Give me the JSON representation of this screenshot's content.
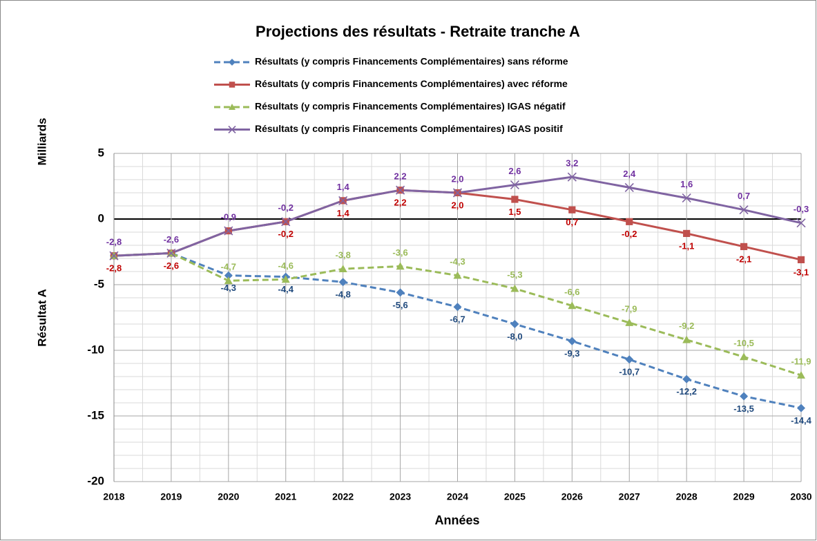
{
  "chart_data": {
    "type": "line",
    "title": "Projections des résultats - Retraite tranche A",
    "ylabel_top": "Milliards",
    "ylabel": "Résultat A",
    "xlabel": "Années",
    "categories": [
      "2018",
      "2019",
      "2020",
      "2021",
      "2022",
      "2023",
      "2024",
      "2025",
      "2026",
      "2027",
      "2028",
      "2029",
      "2030"
    ],
    "ylim": [
      -20,
      5
    ],
    "yticks": [
      -20,
      -15,
      -10,
      -5,
      0,
      5
    ],
    "grid": true,
    "legend": "top",
    "series": [
      {
        "name": "Résultats (y compris Financements Complémentaires) sans réforme",
        "color": "#4f81bd",
        "label_color": "#1f497d",
        "marker": "diamond",
        "dash": true,
        "label_side": "below",
        "values": [
          -2.8,
          -2.6,
          -4.3,
          -4.4,
          -4.8,
          -5.6,
          -6.7,
          -8,
          -9.3,
          -10.7,
          -12.2,
          -13.5,
          -14.4
        ],
        "value_labels": [
          null,
          null,
          "-4,3",
          "-4,4",
          "-4,8",
          "-5,6",
          "-6,7",
          "-8,0",
          "-9,3",
          "-10,7",
          "-12,2",
          "-13,5",
          "-14,4"
        ]
      },
      {
        "name": "Résultats (y compris Financements Complémentaires) avec réforme",
        "color": "#c0504d",
        "label_color": "#c00000",
        "marker": "square",
        "dash": false,
        "label_side": "below",
        "values": [
          -2.8,
          -2.6,
          -0.9,
          -0.2,
          1.4,
          2.2,
          2,
          1.5,
          0.7,
          -0.2,
          -1.1,
          -2.1,
          -3.1
        ],
        "value_labels": [
          "-2,8",
          "-2,6",
          null,
          "-0,2",
          "1,4",
          "2,2",
          "2,0",
          "1,5",
          "0,7",
          "-0,2",
          "-1,1",
          "-2,1",
          "-3,1"
        ]
      },
      {
        "name": "Résultats (y compris Financements Complémentaires) IGAS négatif",
        "color": "#9bbb59",
        "label_color": "#9bbb59",
        "marker": "triangle",
        "dash": true,
        "label_side": "above",
        "values": [
          -2.8,
          -2.6,
          -4.7,
          -4.6,
          -3.8,
          -3.6,
          -4.3,
          -5.3,
          -6.6,
          -7.9,
          -9.2,
          -10.5,
          -11.9
        ],
        "value_labels": [
          null,
          null,
          "-4,7",
          "-4,6",
          "-3,8",
          "-3,6",
          "-4,3",
          "-5,3",
          "-6,6",
          "-7,9",
          "-9,2",
          "-10,5",
          "-11,9"
        ]
      },
      {
        "name": "Résultats (y compris Financements Complémentaires) IGAS positif",
        "color": "#8064a2",
        "label_color": "#7030a0",
        "marker": "x",
        "dash": false,
        "label_side": "above",
        "values": [
          -2.8,
          -2.6,
          -0.9,
          -0.2,
          1.4,
          2.2,
          2,
          2.6,
          3.2,
          2.4,
          1.6,
          0.7,
          -0.3
        ],
        "value_labels": [
          "-2,8",
          "-2,6",
          "-0,9",
          "-0,2",
          "1,4",
          "2,2",
          "2,0",
          "2,6",
          "3,2",
          "2,4",
          "1,6",
          "0,7",
          "-0,3"
        ]
      }
    ]
  }
}
